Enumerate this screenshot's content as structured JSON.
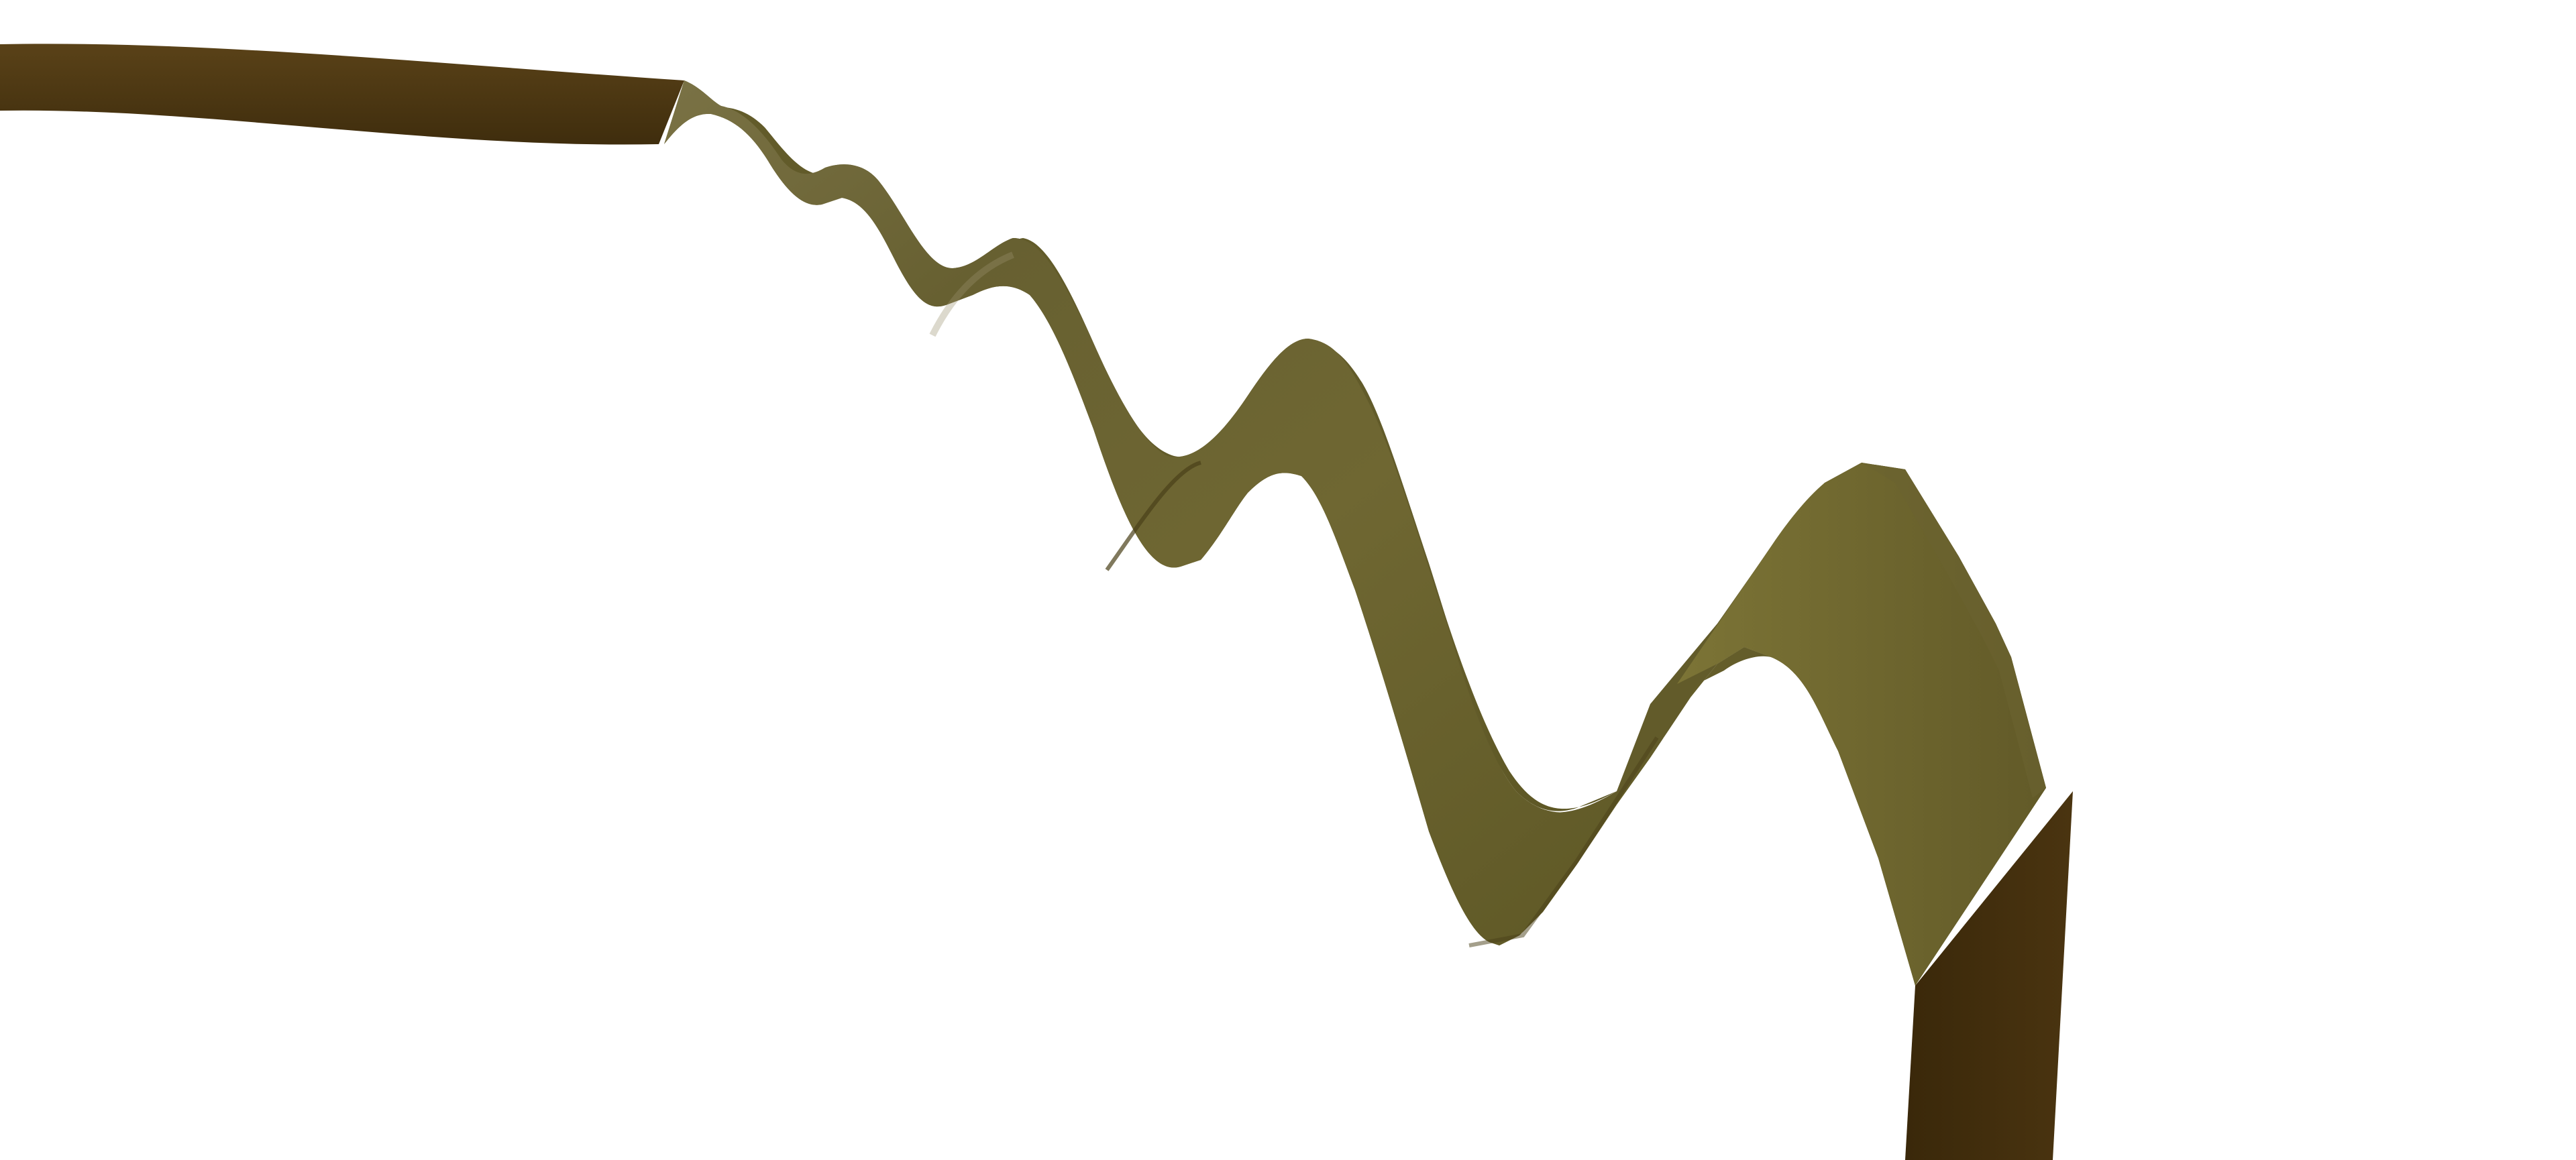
{
  "scene": {
    "background": "#ffffff",
    "subject": "twisted-ribbon",
    "colors": {
      "shadow_brown": "#3b2a0c",
      "dark_brown": "#4b3712",
      "olive": "#6e6630",
      "olive_light": "#8a8040",
      "olive_highlight": "#a39a5e",
      "olive_dark": "#4f4a1e"
    }
  }
}
